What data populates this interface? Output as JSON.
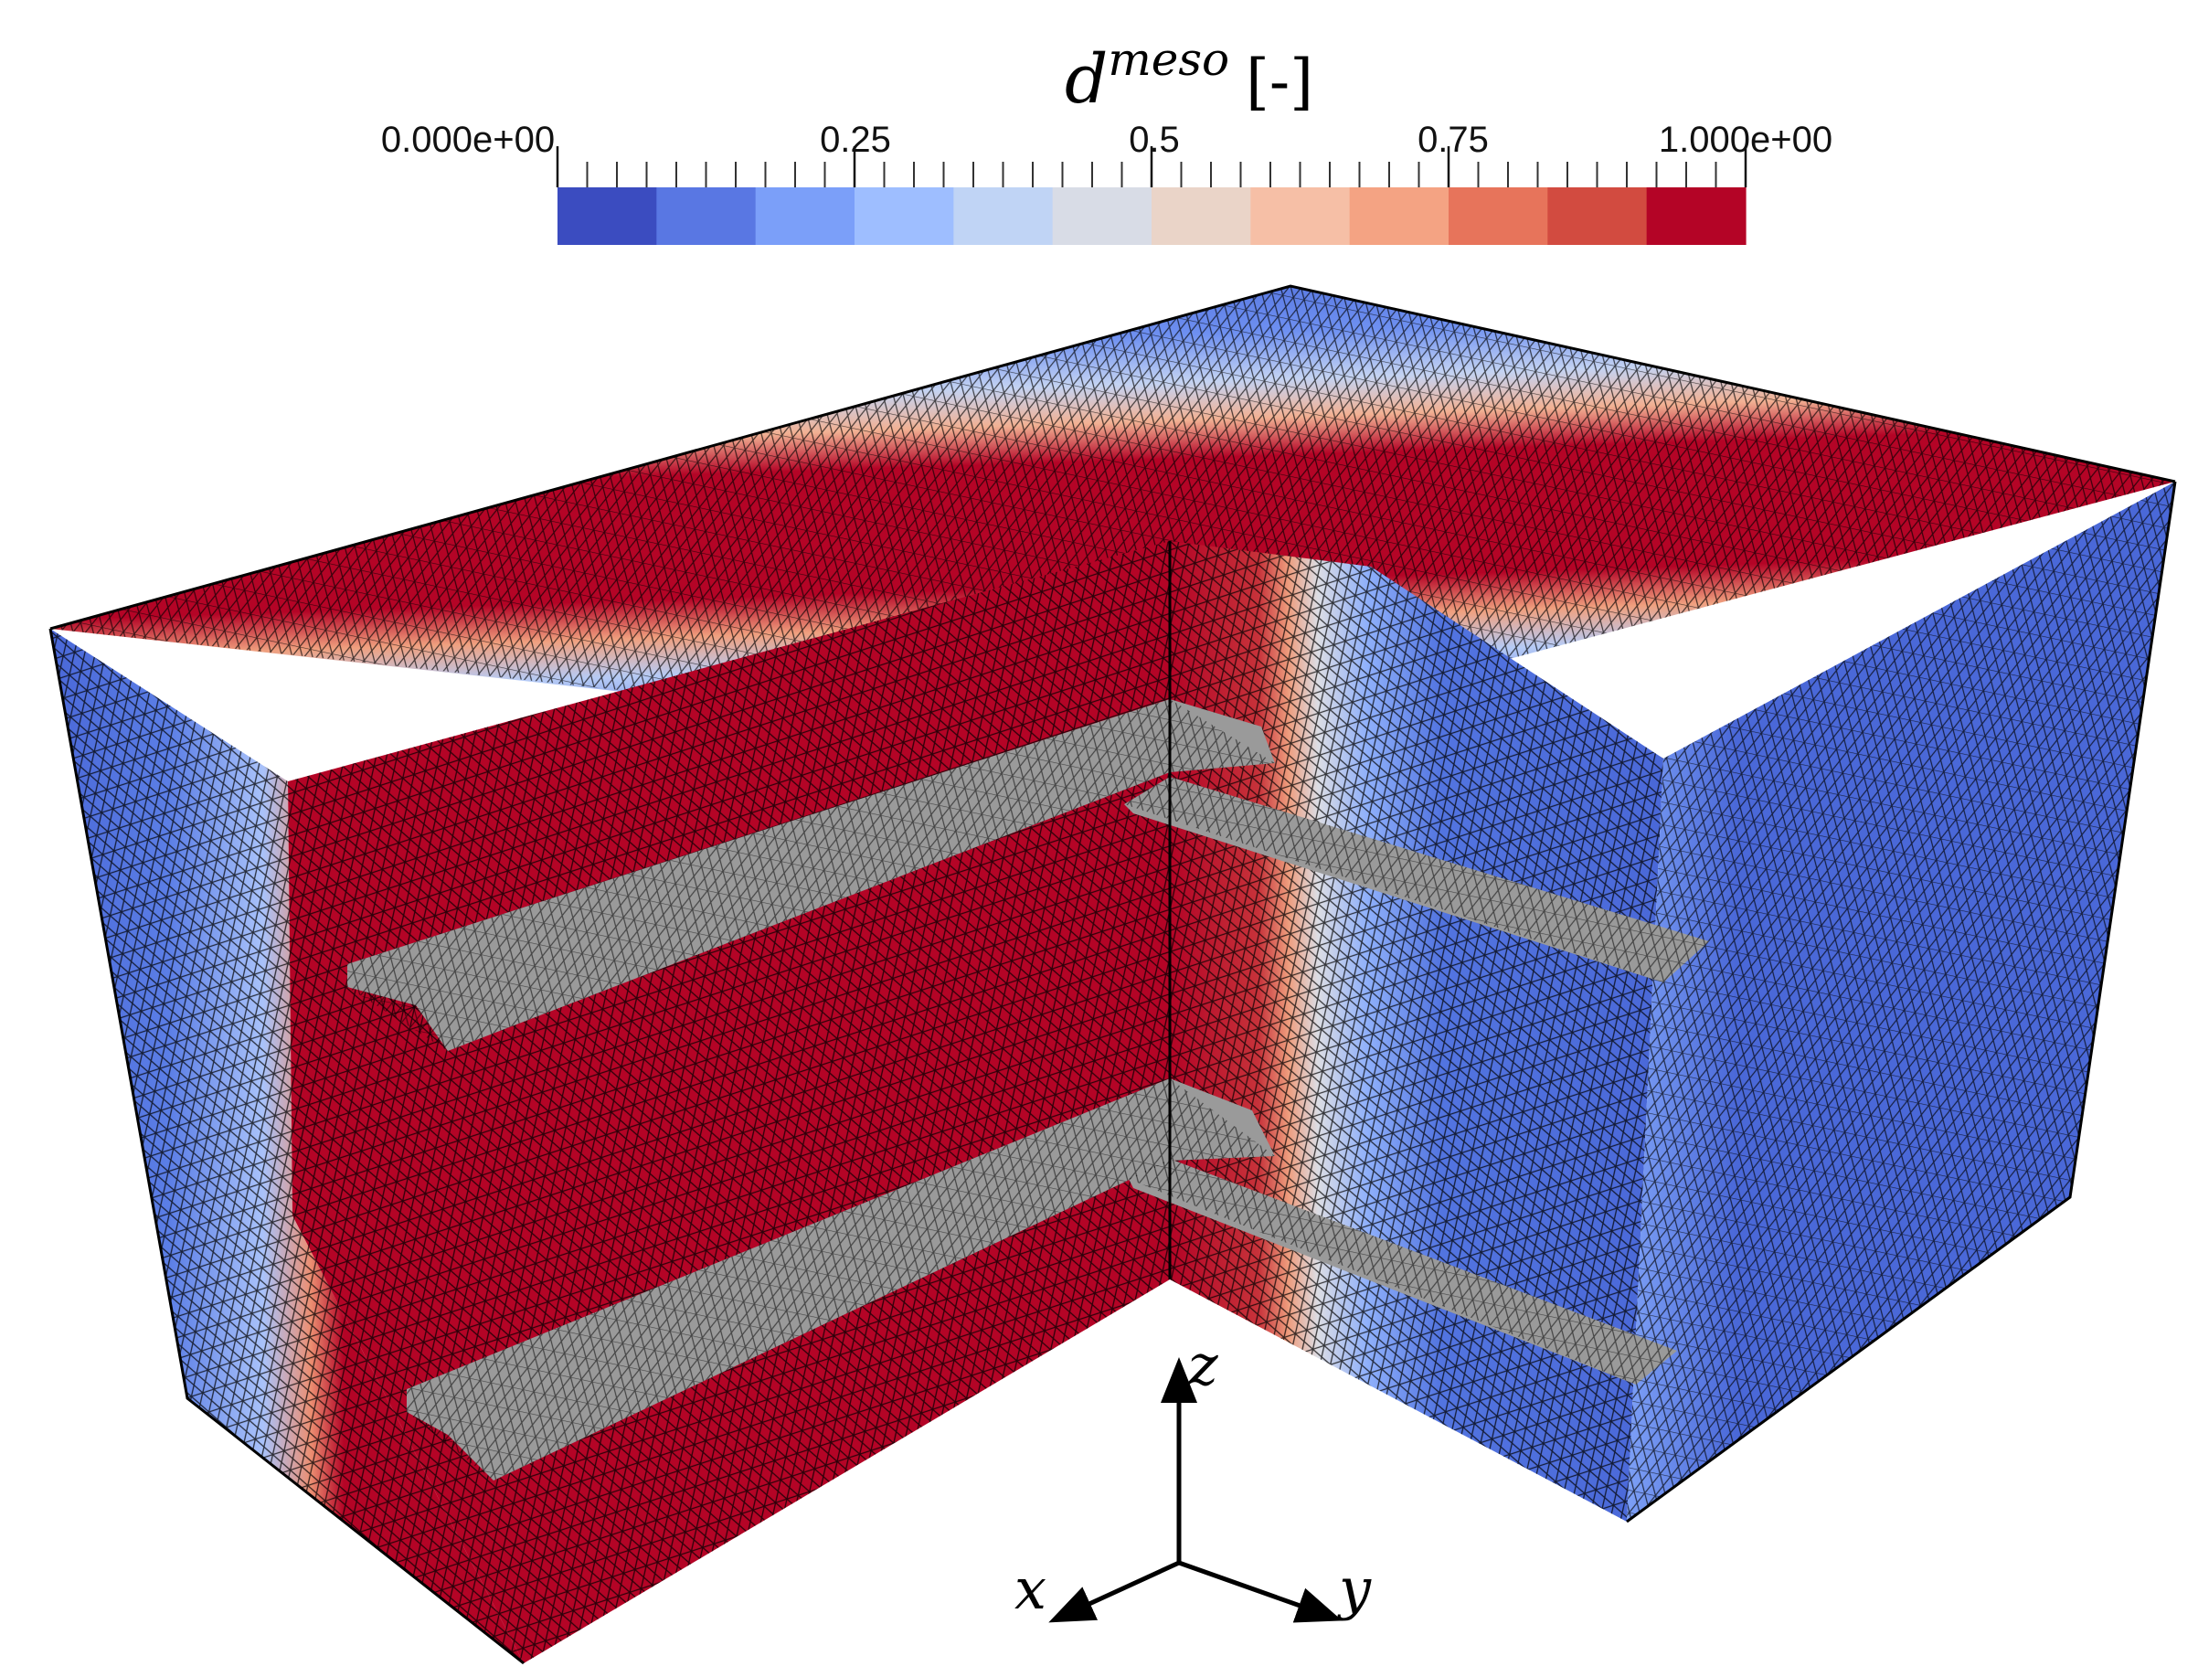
{
  "colorbar": {
    "title_base": "d",
    "title_superscript": "meso",
    "title_unit": "[-]",
    "tick_labels": [
      "0.000e+00",
      "0.25",
      "0.5",
      "0.75",
      "1.000e+00"
    ],
    "tick_values": [
      0,
      0.25,
      0.5,
      0.75,
      1.0
    ],
    "range": [
      0,
      1
    ],
    "colors": [
      "#3b4cc0",
      "#5977e3",
      "#7b9ff9",
      "#9ebeff",
      "#c0d4f5",
      "#d8dce6",
      "#ead4c8",
      "#f6bfa6",
      "#f4a383",
      "#e7745b",
      "#d24b40",
      "#b40426"
    ]
  },
  "axes": {
    "z_label": "z",
    "x_label": "x",
    "y_label": "y"
  },
  "mesh": {
    "low_damage_color": "#4a68d8",
    "high_damage_color": "#b40426",
    "reinforcement_color": "#9a9a9a",
    "edge_color": "#000000"
  }
}
